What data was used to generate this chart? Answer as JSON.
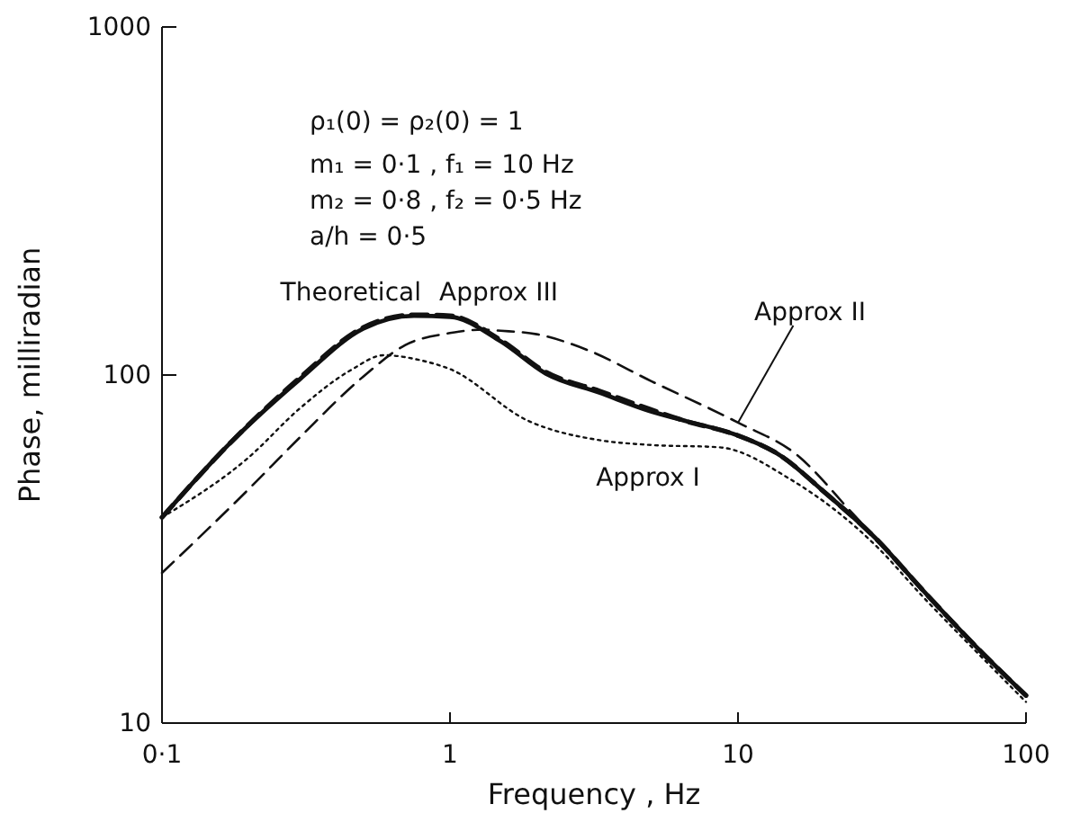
{
  "chart_data": {
    "type": "line",
    "xlabel": "Frequency , Hz",
    "ylabel": "Phase, milliradian",
    "log": "xy",
    "grid": false,
    "marker": "none",
    "xlim": [
      0.1,
      100
    ],
    "xticks": [
      {
        "value": 0.1,
        "label": "0·1"
      },
      1,
      10,
      100
    ],
    "ylim": [
      10,
      1000
    ],
    "yticks": [
      10,
      100,
      1000
    ],
    "annotations": [
      "ρ₁(0) = ρ₂(0) = 1",
      "m₁ = 0·1 , f₁ = 10 Hz",
      "m₂ = 0·8 , f₂ = 0·5 Hz",
      "a/h = 0·5"
    ],
    "series": [
      {
        "name": "Theoretical",
        "color": "#111111",
        "line_style": "solid",
        "x": [
          0.1,
          0.17,
          0.3,
          0.5,
          0.75,
          1,
          1.5,
          2.15,
          3.3,
          4.9,
          6.5,
          10,
          13.9,
          20,
          30,
          44,
          70,
          100
        ],
        "values": [
          39,
          63,
          97,
          136,
          148,
          147,
          125,
          101,
          89,
          79,
          74,
          67,
          59,
          46,
          34,
          24,
          16,
          12
        ]
      },
      {
        "name": "Approx III",
        "color": "#111111",
        "line_style": "dashed",
        "x": [
          0.1,
          0.17,
          0.3,
          0.5,
          0.75,
          1,
          1.5,
          2.15,
          3.3,
          4.9,
          6.5,
          10,
          13.9,
          20,
          30,
          44,
          70,
          100
        ],
        "values": [
          39,
          63,
          98,
          137,
          149,
          148,
          126,
          102,
          90,
          80,
          74,
          67,
          59,
          46,
          34,
          24,
          16,
          12
        ]
      },
      {
        "name": "Approx II",
        "color": "#111111",
        "line_style": "dashed",
        "x": [
          0.1,
          0.2,
          0.3,
          0.5,
          0.7,
          1,
          1.3,
          1.5,
          2,
          3,
          5,
          10,
          16,
          25,
          44,
          70,
          100
        ],
        "values": [
          27,
          47,
          66,
          99,
          122,
          132,
          135,
          134,
          131,
          118,
          96,
          73,
          59,
          40,
          24,
          16,
          12
        ]
      },
      {
        "name": "Approx I",
        "color": "#111111",
        "line_style": "dotted",
        "x": [
          0.1,
          0.2,
          0.3,
          0.45,
          0.59,
          0.8,
          1,
          1.86,
          3.3,
          4.9,
          8.6,
          15.3,
          30.5,
          44,
          70,
          100
        ],
        "values": [
          39,
          58,
          80,
          103,
          114,
          110,
          104,
          74,
          65,
          63,
          62,
          50,
          32,
          23,
          15.5,
          11.5
        ]
      }
    ]
  }
}
